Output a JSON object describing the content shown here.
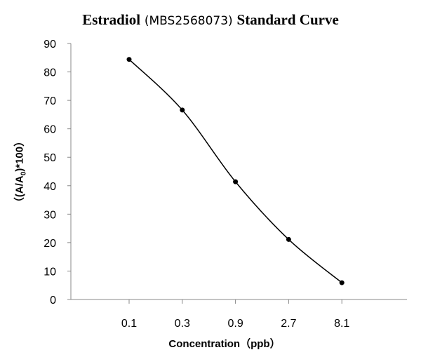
{
  "chart_data": {
    "type": "line",
    "title": {
      "part1": "Estradiol",
      "part2": "(MBS2568073)",
      "part3": "Standard Curve"
    },
    "xlabel": "Concentration（ppb）",
    "ylabel": {
      "prefix": "（(A/A",
      "sub": "0",
      "suffix": ")*100）"
    },
    "categories": [
      "0.1",
      "0.3",
      "0.9",
      "2.7",
      "8.1"
    ],
    "values": [
      84.4,
      66.6,
      41.4,
      21.1,
      5.9
    ],
    "ylim": [
      0,
      90
    ],
    "yticks": [
      0,
      10,
      20,
      30,
      40,
      50,
      60,
      70,
      80,
      90
    ],
    "grid": false,
    "smooth": true,
    "color": "#000000"
  }
}
